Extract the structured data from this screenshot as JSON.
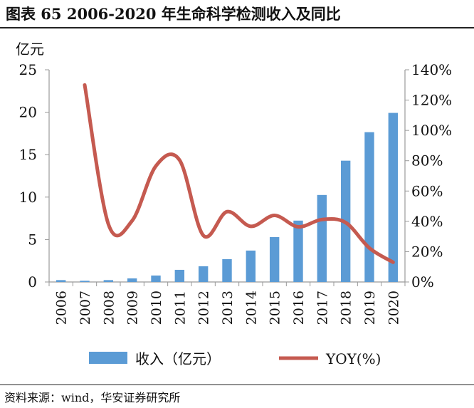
{
  "title": "图表 65 2006-2020 年生命科学检测收入及同比",
  "source": "资料来源：wind，华安证券研究所",
  "chart_data": {
    "type": "bar+line",
    "categories": [
      "2006",
      "2007",
      "2008",
      "2009",
      "2010",
      "2011",
      "2012",
      "2013",
      "2014",
      "2015",
      "2016",
      "2017",
      "2018",
      "2019",
      "2020"
    ],
    "y_left_label": "亿元",
    "y_left_lim": [
      0,
      25
    ],
    "y_left_ticks": [
      "0",
      "5",
      "10",
      "15",
      "20",
      "25"
    ],
    "y_right_lim": [
      0,
      140
    ],
    "y_right_ticks": [
      "0%",
      "20%",
      "40%",
      "60%",
      "80%",
      "100%",
      "120%",
      "140%"
    ],
    "grid": false,
    "legend_placement": "bottom",
    "series": [
      {
        "name": "收入（亿元）",
        "type": "bar",
        "axis": "left",
        "color": "#5B9BD5",
        "values": [
          0.22,
          0.14,
          0.22,
          0.42,
          0.76,
          1.43,
          1.85,
          2.69,
          3.7,
          5.29,
          7.23,
          10.25,
          14.29,
          17.65,
          19.92
        ]
      },
      {
        "name": "YOY(%)",
        "type": "line",
        "axis": "right",
        "color": "#C55A50",
        "values": [
          null,
          130,
          38.1,
          40.4,
          76.5,
          80.4,
          30.7,
          46.4,
          36.7,
          43.9,
          36.4,
          41.2,
          39.2,
          22.4,
          13.0
        ]
      }
    ]
  }
}
